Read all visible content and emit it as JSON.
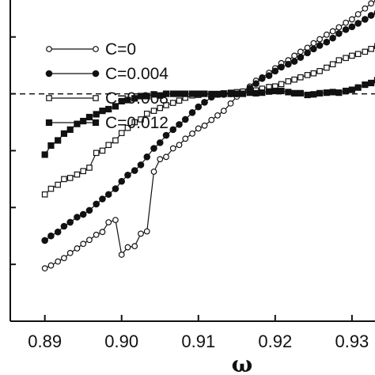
{
  "chart_data": {
    "type": "line",
    "title": "",
    "xlabel": "ω",
    "ylabel": "",
    "xlim": [
      0.8855,
      0.933
    ],
    "ylim": [
      -0.4,
      0.165
    ],
    "x_ticks": [
      0.89,
      0.9,
      0.91,
      0.92,
      0.93
    ],
    "x_tick_labels": [
      "0.89",
      "0.90",
      "0.91",
      "0.92",
      "0.93"
    ],
    "y_ticks": [
      -0.4,
      -0.3,
      -0.2,
      -0.1,
      0.0,
      0.1
    ],
    "reference_line": {
      "y": 0.0,
      "style": "dashed"
    },
    "legend_position": "top-left",
    "grid": false,
    "series": [
      {
        "name": "C=0",
        "marker": "open-circle",
        "x": [
          0.89,
          0.8908,
          0.8917,
          0.8925,
          0.8933,
          0.8942,
          0.895,
          0.8958,
          0.8967,
          0.8975,
          0.8983,
          0.8992,
          0.9,
          0.9008,
          0.9017,
          0.9025,
          0.9033,
          0.9042,
          0.905,
          0.9058,
          0.9067,
          0.9075,
          0.9083,
          0.9092,
          0.91,
          0.9108,
          0.9117,
          0.9125,
          0.9133,
          0.9142,
          0.915,
          0.9158,
          0.9167,
          0.9175,
          0.9183,
          0.9192,
          0.92,
          0.9208,
          0.9217,
          0.9225,
          0.9233,
          0.9242,
          0.925,
          0.9258,
          0.9267,
          0.9275,
          0.9283,
          0.9292,
          0.93,
          0.9308,
          0.9317,
          0.9325,
          0.9333
        ],
        "y": [
          -0.307,
          -0.302,
          -0.295,
          -0.289,
          -0.28,
          -0.272,
          -0.264,
          -0.257,
          -0.248,
          -0.243,
          -0.226,
          -0.222,
          -0.283,
          -0.27,
          -0.268,
          -0.246,
          -0.242,
          -0.137,
          -0.115,
          -0.111,
          -0.096,
          -0.09,
          -0.079,
          -0.07,
          -0.061,
          -0.056,
          -0.046,
          -0.038,
          -0.03,
          -0.017,
          -0.005,
          0.004,
          0.013,
          0.023,
          0.029,
          0.037,
          0.045,
          0.054,
          0.059,
          0.067,
          0.074,
          0.081,
          0.089,
          0.096,
          0.104,
          0.11,
          0.117,
          0.125,
          0.131,
          0.14,
          0.15,
          0.159,
          0.165
        ]
      },
      {
        "name": "C=0.004",
        "marker": "filled-circle",
        "x": [
          0.89,
          0.8908,
          0.8917,
          0.8925,
          0.8933,
          0.8942,
          0.895,
          0.8958,
          0.8967,
          0.8975,
          0.8983,
          0.8992,
          0.9,
          0.9008,
          0.9017,
          0.9025,
          0.9033,
          0.9042,
          0.905,
          0.9058,
          0.9067,
          0.9075,
          0.9083,
          0.9092,
          0.91,
          0.9108,
          0.9117,
          0.9125,
          0.9133,
          0.9142,
          0.915,
          0.9158,
          0.9167,
          0.9175,
          0.9183,
          0.9192,
          0.92,
          0.9208,
          0.9217,
          0.9225,
          0.9233,
          0.9242,
          0.925,
          0.9258,
          0.9267,
          0.9275,
          0.9283,
          0.9292,
          0.93,
          0.9308,
          0.9317,
          0.9325,
          0.9333
        ],
        "y": [
          -0.258,
          -0.25,
          -0.243,
          -0.233,
          -0.226,
          -0.217,
          -0.212,
          -0.205,
          -0.194,
          -0.185,
          -0.177,
          -0.167,
          -0.154,
          -0.143,
          -0.135,
          -0.125,
          -0.111,
          -0.096,
          -0.086,
          -0.073,
          -0.063,
          -0.054,
          -0.045,
          -0.033,
          -0.023,
          -0.015,
          -0.006,
          -0.001,
          -0.001,
          0.0,
          0.0,
          0.003,
          0.01,
          0.018,
          0.027,
          0.032,
          0.04,
          0.047,
          0.052,
          0.057,
          0.064,
          0.072,
          0.079,
          0.085,
          0.091,
          0.098,
          0.106,
          0.113,
          0.118,
          0.124,
          0.131,
          0.138,
          0.143
        ]
      },
      {
        "name": "C=0.008",
        "marker": "open-square",
        "x": [
          0.89,
          0.8908,
          0.8917,
          0.8925,
          0.8933,
          0.8942,
          0.895,
          0.8958,
          0.8967,
          0.8975,
          0.8983,
          0.8992,
          0.9,
          0.9008,
          0.9017,
          0.9025,
          0.9033,
          0.9042,
          0.905,
          0.9058,
          0.9067,
          0.9075,
          0.9083,
          0.9092,
          0.91,
          0.9108,
          0.9117,
          0.9125,
          0.9133,
          0.9142,
          0.915,
          0.9158,
          0.9167,
          0.9175,
          0.9183,
          0.9192,
          0.92,
          0.9208,
          0.9217,
          0.9225,
          0.9233,
          0.9242,
          0.925,
          0.9258,
          0.9267,
          0.9275,
          0.9283,
          0.9292,
          0.93,
          0.9308,
          0.9317,
          0.9325,
          0.9333
        ],
        "y": [
          -0.177,
          -0.167,
          -0.16,
          -0.15,
          -0.148,
          -0.142,
          -0.136,
          -0.13,
          -0.104,
          -0.1,
          -0.09,
          -0.082,
          -0.069,
          -0.06,
          -0.05,
          -0.045,
          -0.035,
          -0.03,
          -0.025,
          -0.02,
          -0.016,
          -0.012,
          -0.007,
          -0.003,
          -0.002,
          0.0,
          0.0,
          0.0,
          0.001,
          0.002,
          0.003,
          0.004,
          0.004,
          0.006,
          0.009,
          0.012,
          0.013,
          0.017,
          0.022,
          0.025,
          0.029,
          0.033,
          0.036,
          0.04,
          0.046,
          0.052,
          0.059,
          0.063,
          0.067,
          0.07,
          0.074,
          0.079,
          0.084
        ]
      },
      {
        "name": "C=0.012",
        "marker": "filled-square",
        "x": [
          0.89,
          0.8908,
          0.8917,
          0.8925,
          0.8933,
          0.8942,
          0.895,
          0.8958,
          0.8967,
          0.8975,
          0.8983,
          0.8992,
          0.9,
          0.9008,
          0.9017,
          0.9025,
          0.9033,
          0.9042,
          0.905,
          0.9058,
          0.9067,
          0.9075,
          0.9083,
          0.9092,
          0.91,
          0.9108,
          0.9117,
          0.9125,
          0.9133,
          0.9142,
          0.915,
          0.9158,
          0.9167,
          0.9175,
          0.9183,
          0.9192,
          0.92,
          0.9208,
          0.9217,
          0.9225,
          0.9233,
          0.9242,
          0.925,
          0.9258,
          0.9267,
          0.9275,
          0.9283,
          0.9292,
          0.93,
          0.9308,
          0.9317,
          0.9325,
          0.9333
        ],
        "y": [
          -0.107,
          -0.091,
          -0.082,
          -0.07,
          -0.063,
          -0.053,
          -0.048,
          -0.041,
          -0.036,
          -0.03,
          -0.027,
          -0.022,
          -0.013,
          -0.011,
          -0.008,
          -0.004,
          -0.004,
          -0.001,
          -0.003,
          0.0,
          0.0,
          0.0,
          0.0,
          0.0,
          0.0,
          0.0,
          -0.001,
          -0.001,
          0.0,
          0.0,
          0.0,
          0.0,
          0.002,
          0.001,
          0.002,
          0.004,
          0.005,
          0.005,
          0.003,
          0.001,
          0.001,
          -0.002,
          -0.001,
          0.001,
          0.002,
          0.003,
          0.002,
          0.005,
          0.007,
          0.011,
          0.016,
          0.019,
          0.024
        ]
      }
    ]
  }
}
